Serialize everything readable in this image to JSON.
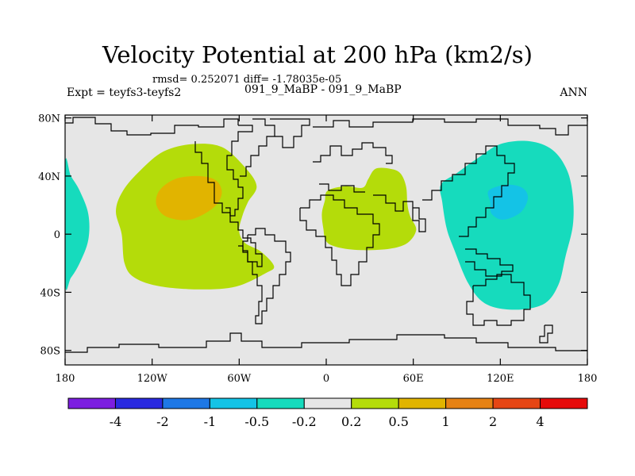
{
  "chart_data": {
    "type": "contour-map",
    "title": "Velocity Potential at 200 hPa (km2/s)",
    "stats_line": "rmsd= 0.252071 diff= -1.78035e-05",
    "left_label": "Expt = teyfs3-teyfs2",
    "center_label": "091_9_MaBP - 091_9_MaBP",
    "right_label": "ANN",
    "rmsd": 0.252071,
    "diff": -1.78035e-05,
    "lon_range": [
      -180,
      180
    ],
    "lat_range": [
      -90,
      90
    ],
    "x_ticks": [
      {
        "lon": -180,
        "label": "180"
      },
      {
        "lon": -120,
        "label": "120W"
      },
      {
        "lon": -60,
        "label": "60W"
      },
      {
        "lon": 0,
        "label": "0"
      },
      {
        "lon": 60,
        "label": "60E"
      },
      {
        "lon": 120,
        "label": "120E"
      },
      {
        "lon": 180,
        "label": "180"
      }
    ],
    "y_ticks": [
      {
        "lat": 80,
        "label": "80N"
      },
      {
        "lat": 40,
        "label": "40N"
      },
      {
        "lat": 0,
        "label": "0"
      },
      {
        "lat": -40,
        "label": "40S"
      },
      {
        "lat": -80,
        "label": "80S"
      }
    ],
    "colorbar": {
      "levels": [
        "-4",
        "-2",
        "-1",
        "-0.5",
        "-0.2",
        "0.2",
        "0.5",
        "1",
        "2",
        "4"
      ],
      "colors": [
        "#7c1ee0",
        "#2a2ae0",
        "#1e78e6",
        "#14c3e6",
        "#16dbbd",
        "#e6e6e6",
        "#b4dc0a",
        "#e1b400",
        "#e68214",
        "#e64614",
        "#e60a0a"
      ]
    },
    "regions": [
      {
        "name": "eastern-pacific-positive",
        "level": "0.2 to 0.5",
        "color": "#b4dc0a",
        "outline": [
          [
            -139,
            -20
          ],
          [
            -141,
            0
          ],
          [
            -145,
            16
          ],
          [
            -140,
            30
          ],
          [
            -128,
            44
          ],
          [
            -112,
            57
          ],
          [
            -92,
            62
          ],
          [
            -72,
            60
          ],
          [
            -56,
            46
          ],
          [
            -48,
            33
          ],
          [
            -54,
            22
          ],
          [
            -58,
            12
          ],
          [
            -60,
            2
          ],
          [
            -56,
            -6
          ],
          [
            -45,
            -12
          ],
          [
            -36,
            -22
          ],
          [
            -42,
            -27
          ],
          [
            -62,
            -36
          ],
          [
            -86,
            -38
          ],
          [
            -114,
            -36
          ],
          [
            -132,
            -30
          ]
        ]
      },
      {
        "name": "eastern-pacific-core",
        "level": "0.5 to 1",
        "color": "#e1b400",
        "outline": [
          [
            -117,
            20
          ],
          [
            -115,
            30
          ],
          [
            -104,
            38
          ],
          [
            -88,
            40
          ],
          [
            -76,
            37
          ],
          [
            -72,
            28
          ],
          [
            -78,
            18
          ],
          [
            -94,
            10
          ],
          [
            -110,
            12
          ]
        ]
      },
      {
        "name": "africa-indian-positive",
        "level": "0.2 to 0.5",
        "color": "#b4dc0a",
        "outline": [
          [
            -3,
            14
          ],
          [
            -1,
            23
          ],
          [
            1,
            30
          ],
          [
            13,
            33
          ],
          [
            25,
            32
          ],
          [
            29,
            38
          ],
          [
            34,
            45
          ],
          [
            44,
            45
          ],
          [
            51,
            42
          ],
          [
            55,
            33
          ],
          [
            56,
            20
          ],
          [
            58,
            12
          ],
          [
            62,
            3
          ],
          [
            56,
            -6
          ],
          [
            44,
            -10
          ],
          [
            24,
            -11
          ],
          [
            8,
            -9
          ],
          [
            0,
            -5
          ],
          [
            -2,
            4
          ]
        ]
      },
      {
        "name": "west-pacific-negative",
        "level": "-0.5 to -0.2",
        "color": "#16dbbd",
        "outline": [
          [
            80,
            22
          ],
          [
            79,
            34
          ],
          [
            90,
            42
          ],
          [
            104,
            52
          ],
          [
            120,
            62
          ],
          [
            140,
            64
          ],
          [
            156,
            58
          ],
          [
            166,
            44
          ],
          [
            170,
            26
          ],
          [
            170,
            6
          ],
          [
            165,
            -15
          ],
          [
            160,
            -35
          ],
          [
            150,
            -48
          ],
          [
            130,
            -52
          ],
          [
            110,
            -48
          ],
          [
            98,
            -34
          ],
          [
            88,
            -10
          ],
          [
            83,
            4
          ]
        ]
      },
      {
        "name": "west-pacific-core",
        "level": "-1 to -0.5",
        "color": "#14c3e6",
        "outline": [
          [
            113,
            22
          ],
          [
            112,
            30
          ],
          [
            124,
            34
          ],
          [
            135,
            32
          ],
          [
            139,
            25
          ],
          [
            134,
            15
          ],
          [
            122,
            10
          ],
          [
            114,
            14
          ]
        ]
      },
      {
        "name": "dateline-negative",
        "level": "-0.5 to -0.2",
        "color": "#16dbbd",
        "outline": [
          [
            -180,
            -33
          ],
          [
            -180,
            48
          ],
          [
            -176,
            40
          ],
          [
            -170,
            30
          ],
          [
            -164,
            14
          ],
          [
            -164,
            -4
          ],
          [
            -170,
            -20
          ],
          [
            -176,
            -30
          ]
        ]
      }
    ]
  }
}
